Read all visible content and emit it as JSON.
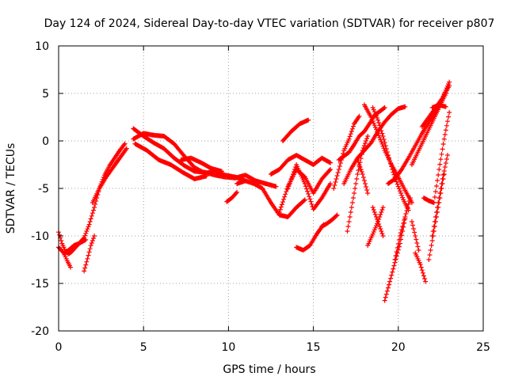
{
  "chart_data": {
    "type": "scatter",
    "title": "Day 124 of 2024, Sidereal Day-to-day VTEC variation (SDTVAR) for receiver p807",
    "xlabel": "GPS time / hours",
    "ylabel": "SDTVAR / TECUs",
    "xlim": [
      0,
      25
    ],
    "ylim": [
      -20,
      10
    ],
    "xticks": [
      0,
      5,
      10,
      15,
      20,
      25
    ],
    "yticks": [
      -20,
      -15,
      -10,
      -5,
      0,
      5,
      10
    ],
    "xtick_labels": [
      "0",
      "5",
      "10",
      "15",
      "20",
      "25"
    ],
    "ytick_labels": [
      "-20",
      "-15",
      "-10",
      "-5",
      "0",
      "5",
      "10"
    ],
    "grid": true,
    "marker": "plus",
    "color": "#ff0000",
    "series": [
      {
        "x": [
          0.0,
          0.3,
          0.6,
          0.9,
          1.2,
          1.5,
          1.8,
          2.1,
          2.4,
          2.7,
          3.0,
          3.3,
          3.6,
          3.9
        ],
        "y": [
          -11.2,
          -11.8,
          -11.5,
          -11.0,
          -10.8,
          -10.2,
          -8.8,
          -7.0,
          -5.0,
          -3.6,
          -2.6,
          -1.8,
          -1.0,
          -0.3
        ]
      },
      {
        "x": [
          0.0,
          0.2,
          0.4,
          0.6,
          0.8,
          1.0,
          1.2,
          1.4,
          1.6
        ],
        "y": [
          -9.6,
          -10.8,
          -11.6,
          -11.9,
          -11.6,
          -11.2,
          -10.8,
          -10.6,
          -10.4
        ]
      },
      {
        "x": [
          0.3,
          0.5,
          0.7
        ],
        "y": [
          -11.8,
          -12.6,
          -13.3
        ]
      },
      {
        "x": [
          1.5,
          1.7,
          1.9,
          2.1
        ],
        "y": [
          -13.7,
          -12.4,
          -11.0,
          -10.0
        ]
      },
      {
        "x": [
          2.0,
          2.4,
          2.8,
          3.2,
          3.6,
          4.0
        ],
        "y": [
          -6.5,
          -5.0,
          -3.8,
          -2.8,
          -1.8,
          -0.8
        ]
      },
      {
        "x": [
          4.4,
          5.0,
          5.6,
          6.2,
          6.8,
          7.4,
          8.0,
          8.6,
          9.2,
          9.8,
          10.4,
          11.0,
          11.6,
          12.2,
          12.8
        ],
        "y": [
          1.3,
          0.5,
          -0.2,
          -0.8,
          -1.8,
          -2.6,
          -3.2,
          -3.3,
          -3.6,
          -3.8,
          -3.9,
          -3.6,
          -4.2,
          -4.5,
          -4.8
        ]
      },
      {
        "x": [
          4.4,
          5.0,
          5.6,
          6.2,
          6.8,
          7.4,
          8.0,
          8.6,
          9.2,
          9.8,
          10.4,
          11.0
        ],
        "y": [
          0.2,
          0.8,
          0.6,
          0.5,
          -0.3,
          -1.6,
          -2.8,
          -3.4,
          -3.2,
          -3.6,
          -3.8,
          -4.2
        ]
      },
      {
        "x": [
          4.5,
          5.2,
          5.9,
          6.6,
          7.3,
          8.0,
          8.7
        ],
        "y": [
          -0.3,
          -1.0,
          -2.0,
          -2.5,
          -3.3,
          -4.0,
          -3.7
        ]
      },
      {
        "x": [
          7.2,
          7.8,
          8.4,
          9.0,
          9.6
        ],
        "y": [
          -2.0,
          -1.8,
          -2.3,
          -2.9,
          -3.2
        ]
      },
      {
        "x": [
          9.9,
          10.2,
          10.5
        ],
        "y": [
          -6.4,
          -6.0,
          -5.4
        ]
      },
      {
        "x": [
          10.5,
          11.0,
          11.5,
          12.0,
          12.5,
          13.0,
          13.5,
          14.0,
          14.5
        ],
        "y": [
          -4.5,
          -4.2,
          -4.5,
          -5.0,
          -6.5,
          -7.8,
          -8.0,
          -7.0,
          -6.2
        ]
      },
      {
        "x": [
          12.5,
          13.0,
          13.5,
          14.0,
          14.5,
          15.0,
          15.5,
          16.0
        ],
        "y": [
          -3.5,
          -3.0,
          -2.0,
          -1.5,
          -2.0,
          -2.5,
          -1.8,
          -2.3
        ]
      },
      {
        "x": [
          13.0,
          13.5,
          14.0,
          14.5,
          15.0,
          15.5,
          16.0
        ],
        "y": [
          -7.5,
          -4.8,
          -3.0,
          -3.8,
          -5.5,
          -4.0,
          -3.0
        ]
      },
      {
        "x": [
          13.5,
          14.0,
          14.5,
          15.0,
          15.5,
          16.0
        ],
        "y": [
          -5.0,
          -2.5,
          -4.5,
          -7.2,
          -6.0,
          -4.5
        ]
      },
      {
        "x": [
          13.2,
          13.7,
          14.2,
          14.7
        ],
        "y": [
          0.0,
          1.0,
          1.8,
          2.2
        ]
      },
      {
        "x": [
          14.0,
          14.4,
          14.8,
          15.2,
          15.6
        ],
        "y": [
          -11.2,
          -11.5,
          -11.0,
          -9.8,
          -8.8
        ]
      },
      {
        "x": [
          15.5,
          15.8,
          16.1,
          16.4
        ],
        "y": [
          -9.0,
          -8.7,
          -8.3,
          -7.8
        ]
      },
      {
        "x": [
          16.2,
          16.5,
          16.8,
          17.1,
          17.4,
          17.7
        ],
        "y": [
          -5.0,
          -3.0,
          -1.0,
          0.2,
          1.8,
          2.6
        ]
      },
      {
        "x": [
          17.0,
          17.3,
          17.6,
          17.9,
          18.2
        ],
        "y": [
          -9.5,
          -6.5,
          -3.5,
          -1.0,
          0.5
        ]
      },
      {
        "x": [
          16.5,
          16.8,
          17.1,
          17.4,
          17.7,
          18.0,
          18.3,
          18.6,
          18.9,
          19.2
        ],
        "y": [
          -2.0,
          -1.6,
          -1.2,
          -0.4,
          0.5,
          1.0,
          1.8,
          2.7,
          3.1,
          3.5
        ]
      },
      {
        "x": [
          16.8,
          17.2,
          17.6,
          18.0,
          18.4,
          18.8,
          19.2,
          19.6,
          20.0,
          20.4
        ],
        "y": [
          -4.5,
          -3.0,
          -1.8,
          -1.0,
          -0.2,
          1.0,
          2.0,
          2.8,
          3.4,
          3.6
        ]
      },
      {
        "x": [
          18.0,
          18.4,
          18.8,
          19.2,
          19.6,
          20.0,
          20.4,
          20.8
        ],
        "y": [
          3.8,
          2.5,
          0.8,
          -1.0,
          -2.5,
          -3.8,
          -5.2,
          -6.5
        ]
      },
      {
        "x": [
          18.5,
          18.8,
          19.1,
          19.4,
          19.7,
          20.0,
          20.3,
          20.6
        ],
        "y": [
          3.5,
          2.2,
          0.5,
          -1.5,
          -3.3,
          -4.8,
          -6.2,
          -7.3
        ]
      },
      {
        "x": [
          17.6,
          17.9,
          18.2
        ],
        "y": [
          -2.0,
          -3.5,
          -5.5
        ]
      },
      {
        "x": [
          18.5,
          18.8,
          19.1
        ],
        "y": [
          -7.0,
          -8.5,
          -10.0
        ]
      },
      {
        "x": [
          18.2,
          18.5,
          18.8,
          19.1
        ],
        "y": [
          -11.0,
          -9.8,
          -8.5,
          -7.0
        ]
      },
      {
        "x": [
          19.2,
          19.5,
          19.8,
          20.1,
          20.4
        ],
        "y": [
          -16.8,
          -14.8,
          -12.8,
          -10.8,
          -8.2
        ]
      },
      {
        "x": [
          19.8,
          20.1,
          20.4,
          20.7
        ],
        "y": [
          -12.5,
          -10.0,
          -8.0,
          -6.0
        ]
      },
      {
        "x": [
          19.4,
          19.8,
          20.2,
          20.6,
          21.0,
          21.4,
          21.8,
          22.2,
          22.6,
          23.0
        ],
        "y": [
          -4.5,
          -4.0,
          -3.0,
          -1.8,
          -0.5,
          0.8,
          2.0,
          3.0,
          4.5,
          6.2
        ]
      },
      {
        "x": [
          20.8,
          21.2,
          21.6,
          22.0,
          22.4,
          22.8
        ],
        "y": [
          -2.5,
          -1.0,
          0.5,
          2.0,
          3.5,
          5.0
        ]
      },
      {
        "x": [
          21.5,
          21.8,
          22.1,
          22.4,
          22.7,
          23.0
        ],
        "y": [
          -6.0,
          -6.3,
          -6.5,
          -3.0,
          0.2,
          3.0
        ]
      },
      {
        "x": [
          22.0,
          22.3,
          22.6,
          22.9
        ],
        "y": [
          -10.0,
          -7.0,
          -4.0,
          -1.5
        ]
      },
      {
        "x": [
          21.0,
          21.3,
          21.6
        ],
        "y": [
          -11.8,
          -13.0,
          -14.8
        ]
      },
      {
        "x": [
          21.8,
          22.1,
          22.4,
          22.7
        ],
        "y": [
          -12.5,
          -9.5,
          -6.5,
          -3.5
        ]
      },
      {
        "x": [
          20.8,
          21.0,
          21.2
        ],
        "y": [
          -8.5,
          -10.0,
          -11.5
        ]
      },
      {
        "x": [
          21.4,
          21.8,
          22.2,
          22.6,
          23.0
        ],
        "y": [
          1.5,
          2.5,
          3.5,
          4.5,
          5.8
        ]
      },
      {
        "x": [
          22.0,
          22.4,
          22.8
        ],
        "y": [
          3.5,
          3.8,
          3.6
        ]
      }
    ]
  }
}
